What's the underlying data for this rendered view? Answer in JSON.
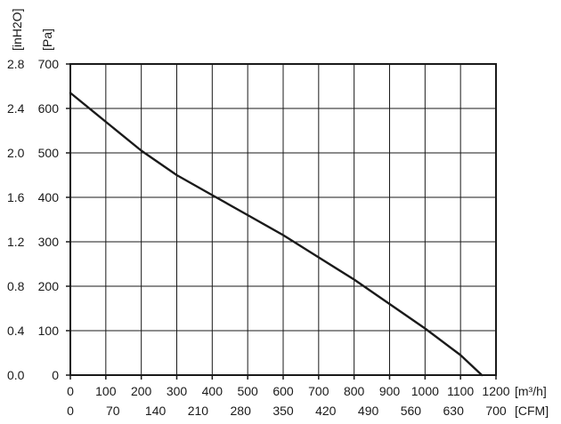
{
  "chart_data": {
    "type": "line",
    "title": "",
    "xlabel_primary": "[m³/h]",
    "xlabel_secondary": "[CFM]",
    "ylabel_primary": "[Pa]",
    "ylabel_secondary": "[inH2O]",
    "xlim": [
      0,
      1200
    ],
    "ylim": [
      0,
      700
    ],
    "x_ticks": [
      "0",
      "100",
      "200",
      "300",
      "400",
      "500",
      "600",
      "700",
      "800",
      "900",
      "1000",
      "1100",
      "1200"
    ],
    "x_ticks_secondary": [
      "0",
      "70",
      "140",
      "210",
      "280",
      "350",
      "420",
      "490",
      "560",
      "630",
      "700"
    ],
    "y_ticks": [
      "0",
      "100",
      "200",
      "300",
      "400",
      "500",
      "600",
      "700"
    ],
    "y_ticks_secondary": [
      "0.0",
      "0.4",
      "0.8",
      "1.2",
      "1.6",
      "2.0",
      "2.4",
      "2.8"
    ],
    "grid": true,
    "series": [
      {
        "name": "",
        "color": "#1a1a1a",
        "x": [
          0,
          100,
          200,
          300,
          400,
          500,
          600,
          700,
          800,
          900,
          1000,
          1100,
          1160
        ],
        "y": [
          635,
          570,
          505,
          450,
          405,
          360,
          315,
          265,
          215,
          160,
          105,
          45,
          0
        ]
      }
    ]
  }
}
